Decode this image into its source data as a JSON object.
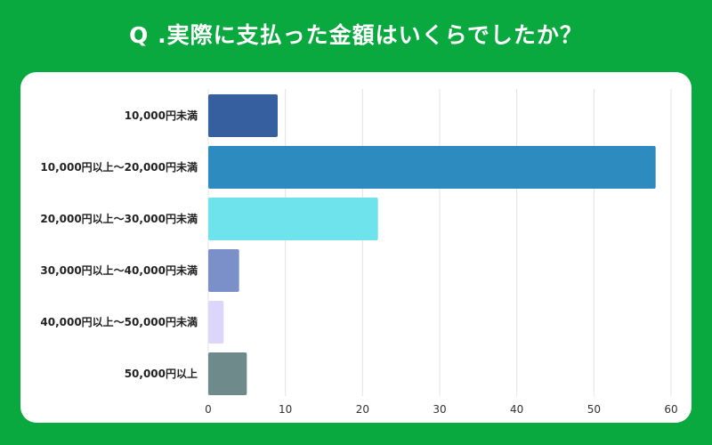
{
  "chart_data": {
    "type": "bar",
    "orientation": "horizontal",
    "title": "Q .実際に支払った金額はいくらでしたか？",
    "categories": [
      "10,000円未満",
      "10,000円以上～20,000円未満",
      "20,000円以上～30,000円未満",
      "30,000円以上～40,000円未満",
      "40,000円以上～50,000円未満",
      "50,000円以上"
    ],
    "values": [
      9,
      58,
      22,
      4,
      2,
      5
    ],
    "colors": [
      "#355f9e",
      "#2e8bc0",
      "#6ee3ec",
      "#7b90c8",
      "#dcd6fb",
      "#6e8a8a"
    ],
    "xlim": [
      0,
      60
    ],
    "xticks": [
      "0",
      "10",
      "20",
      "30",
      "40",
      "50",
      "60"
    ],
    "xlabel": "",
    "ylabel": "",
    "grid": true
  }
}
